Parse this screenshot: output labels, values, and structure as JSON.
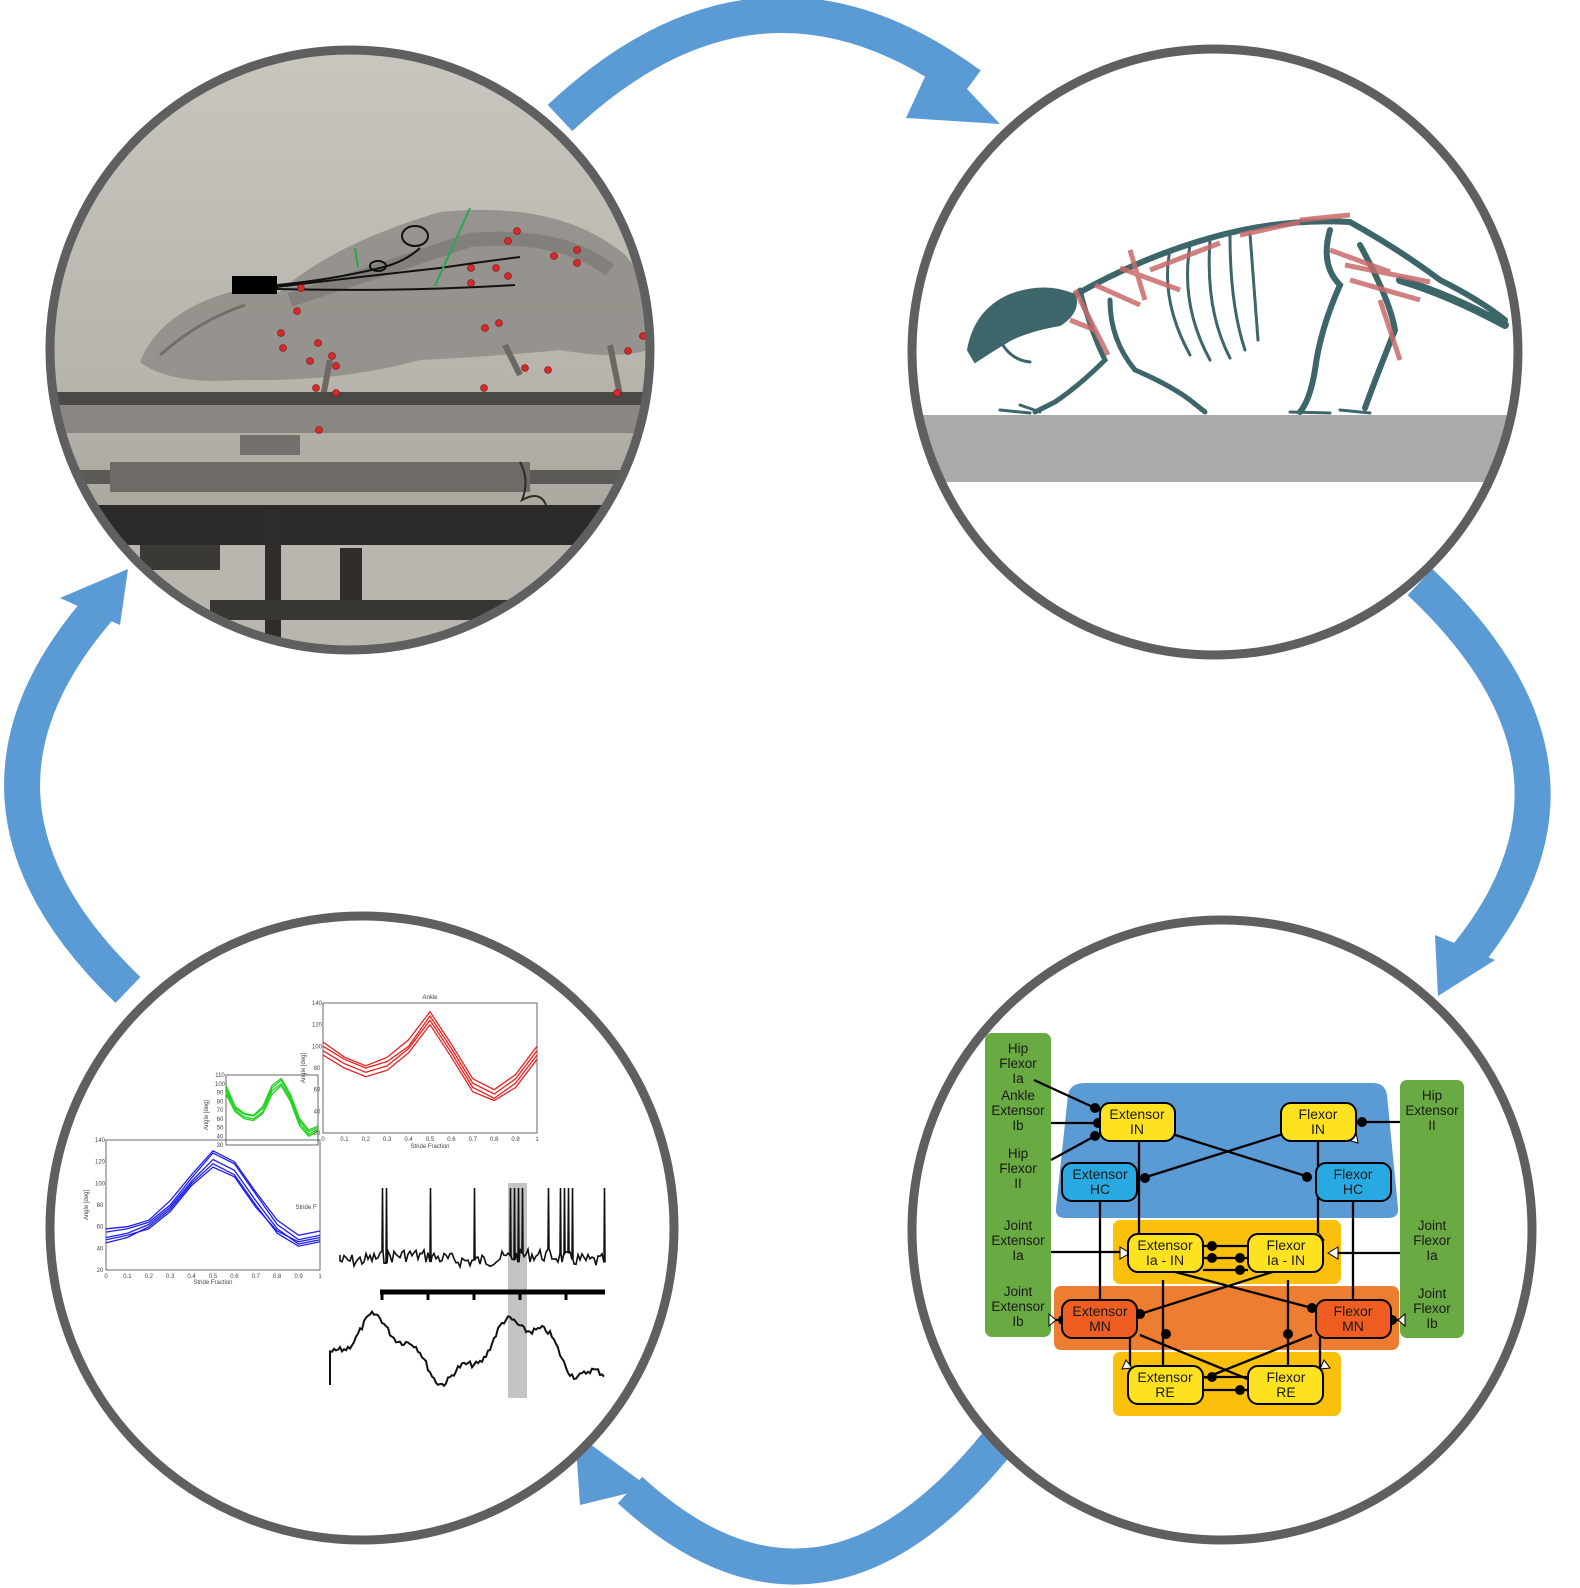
{
  "colors": {
    "arrow": "#5b9bd5",
    "ring": "#5f5f5f",
    "afferent_green": "#6aaa43",
    "interneuron_blue": "#5b9bd5",
    "ia_yellow": "#fbc00c",
    "mn_orange": "#ed7d31",
    "node_yellow": "#ffe21f",
    "node_blue": "#29a9e1",
    "node_orange": "#ef5d22",
    "trace_blue": "#2121e8",
    "trace_green": "#22d322",
    "trace_red": "#e82121",
    "marker_red": "#d42a2a",
    "muscle_red": "#c96a6a",
    "skeleton": "#3d666b"
  },
  "panels": {
    "xray": {
      "icon": "xray-rat-icon"
    },
    "skeleton": {
      "icon": "rat-skeleton-icon"
    },
    "network": {
      "nodes": {
        "ext_in": [
          "Extensor",
          "IN"
        ],
        "flx_in": [
          "Flexor",
          "IN"
        ],
        "ext_hc": [
          "Extensor",
          "HC"
        ],
        "flx_hc": [
          "Flexor",
          "HC"
        ],
        "ext_ia": [
          "Extensor",
          "Ia - IN"
        ],
        "flx_ia": [
          "Flexor",
          "Ia - IN"
        ],
        "ext_mn": [
          "Extensor",
          "MN"
        ],
        "flx_mn": [
          "Flexor",
          "MN"
        ],
        "ext_re": [
          "Extensor",
          "RE"
        ],
        "flx_re": [
          "Flexor",
          "RE"
        ]
      },
      "inputs_left": [
        [
          "Hip",
          "Flexor",
          "Ia"
        ],
        [
          "Ankle",
          "Extensor",
          "Ib"
        ],
        [
          "Hip",
          "Flexor",
          "II"
        ],
        [
          "Joint",
          "Extensor",
          "Ia"
        ],
        [
          "Joint",
          "Extensor",
          "Ib"
        ]
      ],
      "inputs_right": [
        [
          "Hip",
          "Extensor",
          "II"
        ],
        [
          "Joint",
          "Flexor",
          "Ia"
        ],
        [
          "Joint",
          "Flexor",
          "Ib"
        ]
      ]
    },
    "plots": {
      "ankle_title": "Ankle",
      "ylabel": "Angle [deg]",
      "xlabel": "Stride Fraction",
      "xlabel_partial": "Stride F",
      "x_ticks": [
        "0",
        "0.1",
        "0.2",
        "0.3",
        "0.4",
        "0.5",
        "0.6",
        "0.7",
        "0.8",
        "0.9",
        "1"
      ],
      "blue_y_ticks": [
        "140",
        "120",
        "100",
        "80",
        "60",
        "40",
        "20"
      ],
      "green_y_ticks": [
        "110",
        "100",
        "90",
        "80",
        "70",
        "60",
        "50",
        "40",
        "30"
      ],
      "red_y_ticks": [
        "140",
        "120",
        "100",
        "80",
        "60",
        "40",
        "20"
      ]
    }
  },
  "chart_data": [
    {
      "type": "line",
      "title": "",
      "xlabel": "Stride Fraction",
      "ylabel": "Angle [deg]",
      "xlim": [
        0,
        1
      ],
      "ylim": [
        20,
        140
      ],
      "x": [
        0,
        0.1,
        0.2,
        0.3,
        0.4,
        0.5,
        0.6,
        0.7,
        0.8,
        0.9,
        1
      ],
      "series": [
        {
          "values": [
            55,
            58,
            64,
            80,
            105,
            128,
            118,
            90,
            62,
            48,
            52
          ]
        },
        {
          "values": [
            50,
            54,
            62,
            78,
            102,
            122,
            112,
            84,
            58,
            44,
            48
          ]
        },
        {
          "values": [
            45,
            50,
            60,
            76,
            100,
            118,
            108,
            80,
            54,
            42,
            46
          ]
        },
        {
          "values": [
            58,
            60,
            66,
            84,
            108,
            130,
            120,
            92,
            66,
            52,
            56
          ]
        },
        {
          "values": [
            48,
            52,
            58,
            74,
            98,
            115,
            106,
            78,
            56,
            46,
            50
          ]
        }
      ]
    },
    {
      "type": "line",
      "title": "",
      "xlabel": "Stride F",
      "ylabel": "Angle [deg]",
      "xlim": [
        0,
        1
      ],
      "ylim": [
        30,
        110
      ],
      "x": [
        0,
        0.1,
        0.2,
        0.3,
        0.4,
        0.5,
        0.6,
        0.7,
        0.8,
        0.9,
        1
      ],
      "series": [
        {
          "values": [
            95,
            70,
            62,
            60,
            68,
            92,
            100,
            82,
            55,
            42,
            48
          ]
        },
        {
          "values": [
            90,
            72,
            65,
            63,
            72,
            95,
            104,
            85,
            58,
            45,
            50
          ]
        },
        {
          "values": [
            88,
            68,
            60,
            58,
            66,
            88,
            98,
            80,
            52,
            40,
            46
          ]
        },
        {
          "values": [
            98,
            74,
            66,
            64,
            74,
            98,
            106,
            88,
            60,
            47,
            52
          ]
        }
      ]
    },
    {
      "type": "line",
      "title": "Ankle",
      "xlabel": "Stride Fraction",
      "ylabel": "Angle [deg]",
      "xlim": [
        0,
        1
      ],
      "ylim": [
        20,
        140
      ],
      "x": [
        0,
        0.1,
        0.2,
        0.3,
        0.4,
        0.5,
        0.6,
        0.7,
        0.8,
        0.9,
        1
      ],
      "series": [
        {
          "values": [
            100,
            88,
            80,
            86,
            100,
            128,
            98,
            66,
            56,
            70,
            96
          ]
        },
        {
          "values": [
            96,
            84,
            76,
            82,
            98,
            124,
            94,
            62,
            52,
            66,
            92
          ]
        },
        {
          "values": [
            104,
            90,
            82,
            90,
            106,
            132,
            102,
            70,
            60,
            74,
            100
          ]
        },
        {
          "values": [
            92,
            80,
            72,
            78,
            94,
            120,
            90,
            58,
            50,
            62,
            88
          ]
        }
      ]
    }
  ]
}
